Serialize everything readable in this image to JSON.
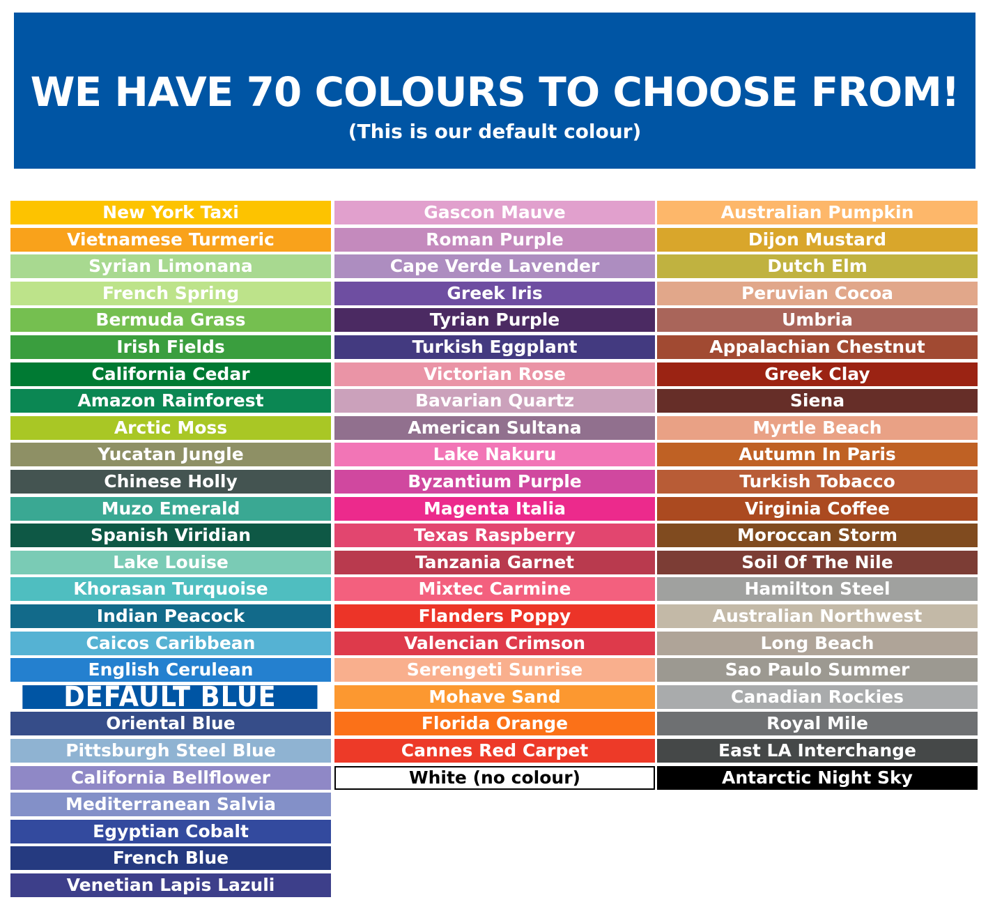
{
  "header": {
    "title": "WE HAVE 70 COLOURS TO CHOOSE FROM!",
    "subtitle": "(This is our default colour)",
    "color": "#0055a4"
  },
  "columns": [
    [
      {
        "label": "New York Taxi",
        "color": "#fdc300"
      },
      {
        "label": "Vietnamese Turmeric",
        "color": "#f9a21b"
      },
      {
        "label": "Syrian Limonana",
        "color": "#a8d990"
      },
      {
        "label": "French Spring",
        "color": "#bde38a"
      },
      {
        "label": "Bermuda Grass",
        "color": "#75bf50"
      },
      {
        "label": "Irish Fields",
        "color": "#3a9e3e"
      },
      {
        "label": "California Cedar",
        "color": "#007a33"
      },
      {
        "label": "Amazon Rainforest",
        "color": "#0b8753"
      },
      {
        "label": "Arctic Moss",
        "color": "#a9c725"
      },
      {
        "label": "Yucatan Jungle",
        "color": "#8e9065"
      },
      {
        "label": "Chinese Holly",
        "color": "#445451"
      },
      {
        "label": "Muzo Emerald",
        "color": "#3aa893"
      },
      {
        "label": "Spanish Viridian",
        "color": "#0e5845"
      },
      {
        "label": "Lake Louise",
        "color": "#7acbb5"
      },
      {
        "label": "Khorasan Turquoise",
        "color": "#4fbec0"
      },
      {
        "label": "Indian Peacock",
        "color": "#126a8a"
      },
      {
        "label": "Caicos Caribbean",
        "color": "#55b2d3"
      },
      {
        "label": "English Cerulean",
        "color": "#2480cf"
      },
      {
        "label": "DEFAULT BLUE",
        "color": "#0055a4",
        "large": true
      },
      {
        "label": "Oriental Blue",
        "color": "#364d89"
      },
      {
        "label": "Pittsburgh Steel Blue",
        "color": "#8fb3d2"
      },
      {
        "label": "California Bellflower",
        "color": "#8f88c6"
      },
      {
        "label": "Mediterranean Salvia",
        "color": "#8390c8"
      },
      {
        "label": "Egyptian Cobalt",
        "color": "#334a9e"
      },
      {
        "label": "French Blue",
        "color": "#253a80"
      },
      {
        "label": "Venetian Lapis Lazuli",
        "color": "#3d3f8a"
      }
    ],
    [
      {
        "label": "Gascon Mauve",
        "color": "#e1a0cd"
      },
      {
        "label": "Roman Purple",
        "color": "#c48abd"
      },
      {
        "label": "Cape Verde Lavender",
        "color": "#ad8dc0"
      },
      {
        "label": "Greek Iris",
        "color": "#6e4ea1"
      },
      {
        "label": "Tyrian Purple",
        "color": "#4b2a62"
      },
      {
        "label": "Turkish Eggplant",
        "color": "#433a80"
      },
      {
        "label": "Victorian Rose",
        "color": "#ea94a6"
      },
      {
        "label": "Bavarian Quartz",
        "color": "#cba1bb"
      },
      {
        "label": "American Sultana",
        "color": "#91708e"
      },
      {
        "label": "Lake Nakuru",
        "color": "#f275b6"
      },
      {
        "label": "Byzantium Purple",
        "color": "#d0489f"
      },
      {
        "label": "Magenta Italia",
        "color": "#ec2a8c"
      },
      {
        "label": "Texas Raspberry",
        "color": "#e2466f"
      },
      {
        "label": "Tanzania Garnet",
        "color": "#b93a4e"
      },
      {
        "label": "Mixtec Carmine",
        "color": "#f3607e"
      },
      {
        "label": "Flanders Poppy",
        "color": "#ec3428"
      },
      {
        "label": "Valencian Crimson",
        "color": "#de3a4b"
      },
      {
        "label": "Serengeti Sunrise",
        "color": "#f9af8d"
      },
      {
        "label": "Mohave Sand",
        "color": "#fc9830"
      },
      {
        "label": "Florida Orange",
        "color": "#fb7118"
      },
      {
        "label": "Cannes Red Carpet",
        "color": "#ed3a28"
      },
      {
        "label": "White (no colour)",
        "color": "#ffffff"
      }
    ],
    [
      {
        "label": "Australian Pumpkin",
        "color": "#fdb76a"
      },
      {
        "label": "Dijon Mustard",
        "color": "#d9a62b"
      },
      {
        "label": "Dutch Elm",
        "color": "#c0b240"
      },
      {
        "label": "Peruvian Cocoa",
        "color": "#e1a78a"
      },
      {
        "label": "Umbria",
        "color": "#a9655a"
      },
      {
        "label": "Appalachian Chestnut",
        "color": "#a14a32"
      },
      {
        "label": "Greek Clay",
        "color": "#9b2313"
      },
      {
        "label": "Siena",
        "color": "#662e28"
      },
      {
        "label": "Myrtle Beach",
        "color": "#e9a185"
      },
      {
        "label": "Autumn In Paris",
        "color": "#bf6124"
      },
      {
        "label": "Turkish Tobacco",
        "color": "#b85c36"
      },
      {
        "label": "Virginia Coffee",
        "color": "#ab4a20"
      },
      {
        "label": "Moroccan Storm",
        "color": "#804b1f"
      },
      {
        "label": "Soil Of The Nile",
        "color": "#7c3d35"
      },
      {
        "label": "Hamilton Steel",
        "color": "#a0a19f"
      },
      {
        "label": "Australian Northwest",
        "color": "#c3b9a7"
      },
      {
        "label": "Long Beach",
        "color": "#afa498"
      },
      {
        "label": "Sao Paulo Summer",
        "color": "#9c9991"
      },
      {
        "label": "Canadian Rockies",
        "color": "#a9abac"
      },
      {
        "label": "Royal Mile",
        "color": "#6e7072"
      },
      {
        "label": "East LA Interchange",
        "color": "#454848"
      },
      {
        "label": "Antarctic Night Sky",
        "color": "#000000"
      }
    ]
  ]
}
